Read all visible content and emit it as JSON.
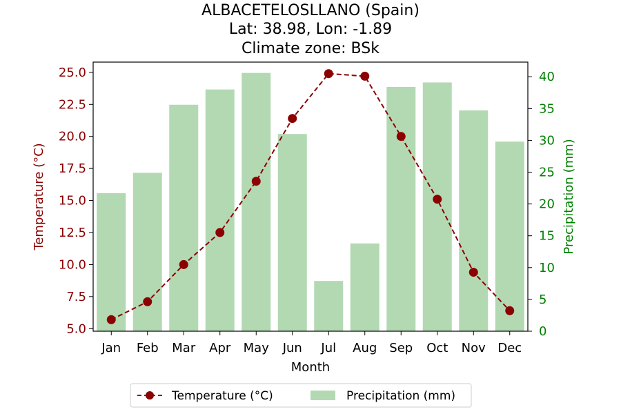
{
  "chart_data": {
    "type": "bar+line",
    "title": [
      "ALBACETELOSLLANO (Spain)",
      "Lat: 38.98, Lon: -1.89",
      "Climate zone: BSk"
    ],
    "xlabel": "Month",
    "ylabel_left": "Temperature (°C)",
    "ylabel_right": "Precipitation (mm)",
    "categories": [
      "Jan",
      "Feb",
      "Mar",
      "Apr",
      "May",
      "Jun",
      "Jul",
      "Aug",
      "Sep",
      "Oct",
      "Nov",
      "Dec"
    ],
    "series": [
      {
        "name": "Temperature (°C)",
        "type": "line",
        "axis": "left",
        "color": "#8b0000",
        "values": [
          5.7,
          7.1,
          10.0,
          12.5,
          16.5,
          21.4,
          24.9,
          24.7,
          20.0,
          15.1,
          9.4,
          6.4
        ]
      },
      {
        "name": "Precipitation (mm)",
        "type": "bar",
        "axis": "right",
        "color": "#b3d9b3",
        "values": [
          21.7,
          24.9,
          35.6,
          38.0,
          40.6,
          31.0,
          7.9,
          13.8,
          38.4,
          39.1,
          34.7,
          29.8
        ]
      }
    ],
    "ylim_left": [
      4.8,
      25.8
    ],
    "ylim_right": [
      0,
      42.3
    ],
    "yticks_left": [
      "5.0",
      "7.5",
      "10.0",
      "12.5",
      "15.0",
      "17.5",
      "20.0",
      "22.5",
      "25.0"
    ],
    "yticks_right": [
      "0",
      "5",
      "10",
      "15",
      "20",
      "25",
      "30",
      "35",
      "40"
    ],
    "left_axis_color": "#8b0000",
    "right_axis_color": "#008000",
    "legend_position": "bottom-center",
    "grid": false
  }
}
